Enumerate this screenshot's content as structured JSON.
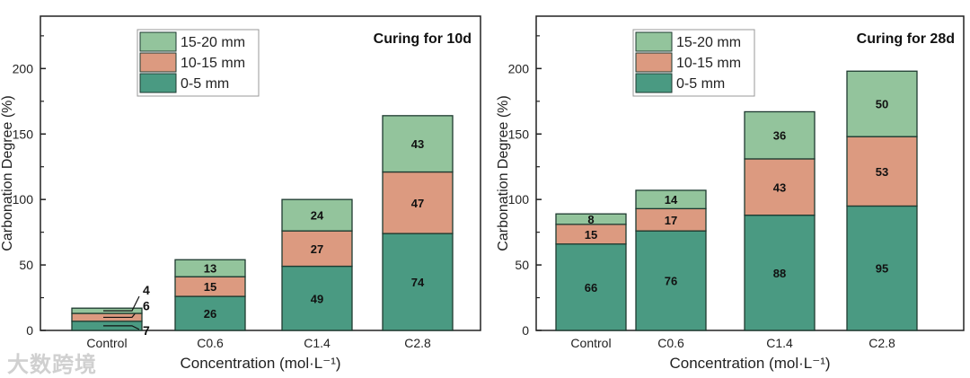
{
  "chart_data": [
    {
      "type": "bar",
      "stacked": true,
      "title": "Curing for 10d",
      "xlabel": "Concentration (mol·L⁻¹)",
      "ylabel": "Carbonation Degree (%)",
      "ylim": [
        0,
        240
      ],
      "yticks": [
        0,
        50,
        100,
        150,
        200
      ],
      "categories": [
        "Control",
        "C0.6",
        "C1.4",
        "C2.8"
      ],
      "legend_position": "top-left",
      "series": [
        {
          "name": "0-5 mm",
          "color": "#4a9a82",
          "values": [
            7,
            26,
            49,
            74
          ]
        },
        {
          "name": "10-15 mm",
          "color": "#dc9a80",
          "values": [
            6,
            15,
            27,
            47
          ]
        },
        {
          "name": "15-20 mm",
          "color": "#93c49c",
          "values": [
            4,
            13,
            24,
            43
          ]
        }
      ]
    },
    {
      "type": "bar",
      "stacked": true,
      "title": "Curing for 28d",
      "xlabel": "Concentration (mol·L⁻¹)",
      "ylabel": "Carbonation Degree (%)",
      "ylim": [
        0,
        240
      ],
      "yticks": [
        0,
        50,
        100,
        150,
        200
      ],
      "categories": [
        "Control",
        "C0.6",
        "C1.4",
        "C2.8"
      ],
      "legend_position": "top-left",
      "series": [
        {
          "name": "0-5 mm",
          "color": "#4a9a82",
          "values": [
            66,
            76,
            88,
            95
          ]
        },
        {
          "name": "10-15 mm",
          "color": "#dc9a80",
          "values": [
            15,
            17,
            43,
            53
          ]
        },
        {
          "name": "15-20 mm",
          "color": "#93c49c",
          "values": [
            8,
            14,
            36,
            50
          ]
        }
      ]
    }
  ],
  "watermark": "大数跨境"
}
